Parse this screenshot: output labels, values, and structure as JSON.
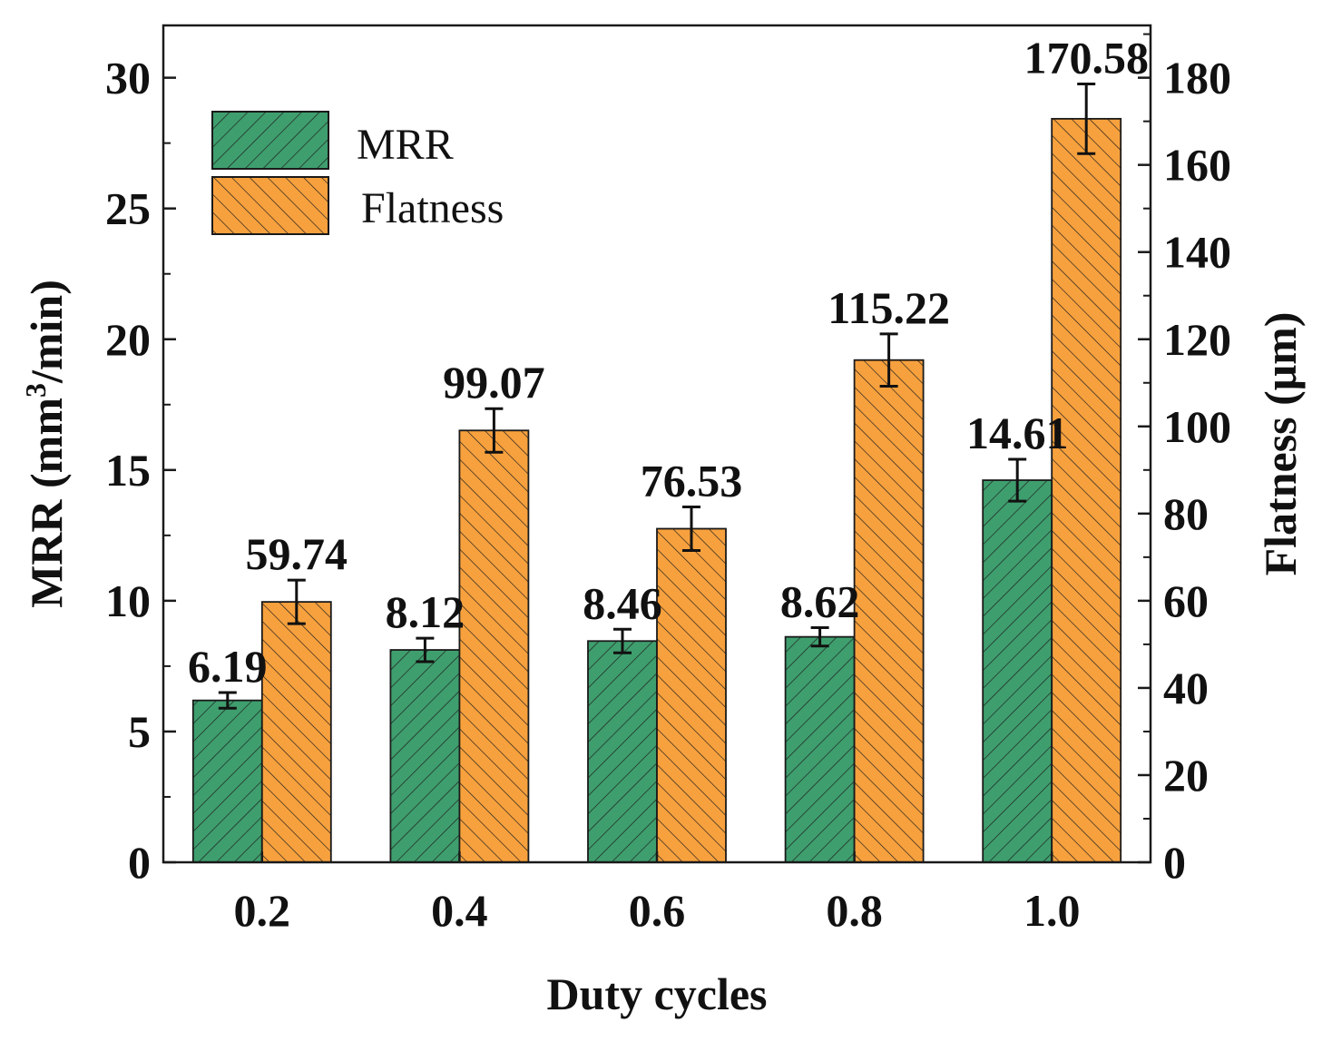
{
  "chart_data": {
    "type": "bar",
    "xlabel": "Duty cycles",
    "categories": [
      "0.2",
      "0.4",
      "0.6",
      "0.8",
      "1.0"
    ],
    "left_axis": {
      "label_prefix": "MRR (mm",
      "label_sup": "3",
      "label_suffix": "/min)",
      "ylim": [
        0,
        32
      ],
      "ticks": [
        0,
        5,
        10,
        15,
        20,
        25,
        30
      ]
    },
    "right_axis": {
      "label": "Flatness (μm)",
      "ylim": [
        0,
        192
      ],
      "ticks": [
        0,
        20,
        40,
        60,
        80,
        100,
        120,
        140,
        160,
        180
      ]
    },
    "series": [
      {
        "name": "MRR",
        "axis": "left",
        "color": "#3f9e6e",
        "hatch": "forward",
        "values": [
          6.19,
          8.12,
          8.46,
          8.62,
          14.61
        ],
        "errors": [
          0.3,
          0.45,
          0.45,
          0.35,
          0.8
        ],
        "labels": [
          "6.19",
          "8.12",
          "8.46",
          "8.62",
          "14.61"
        ]
      },
      {
        "name": "Flatness",
        "axis": "right",
        "color": "#f7a13e",
        "hatch": "backward",
        "values": [
          59.74,
          99.07,
          76.53,
          115.22,
          170.58
        ],
        "errors": [
          5,
          5,
          5,
          6,
          8
        ],
        "labels": [
          "59.74",
          "99.07",
          "76.53",
          "115.22",
          "170.58"
        ]
      }
    ],
    "legend": {
      "position": "top-left"
    }
  }
}
